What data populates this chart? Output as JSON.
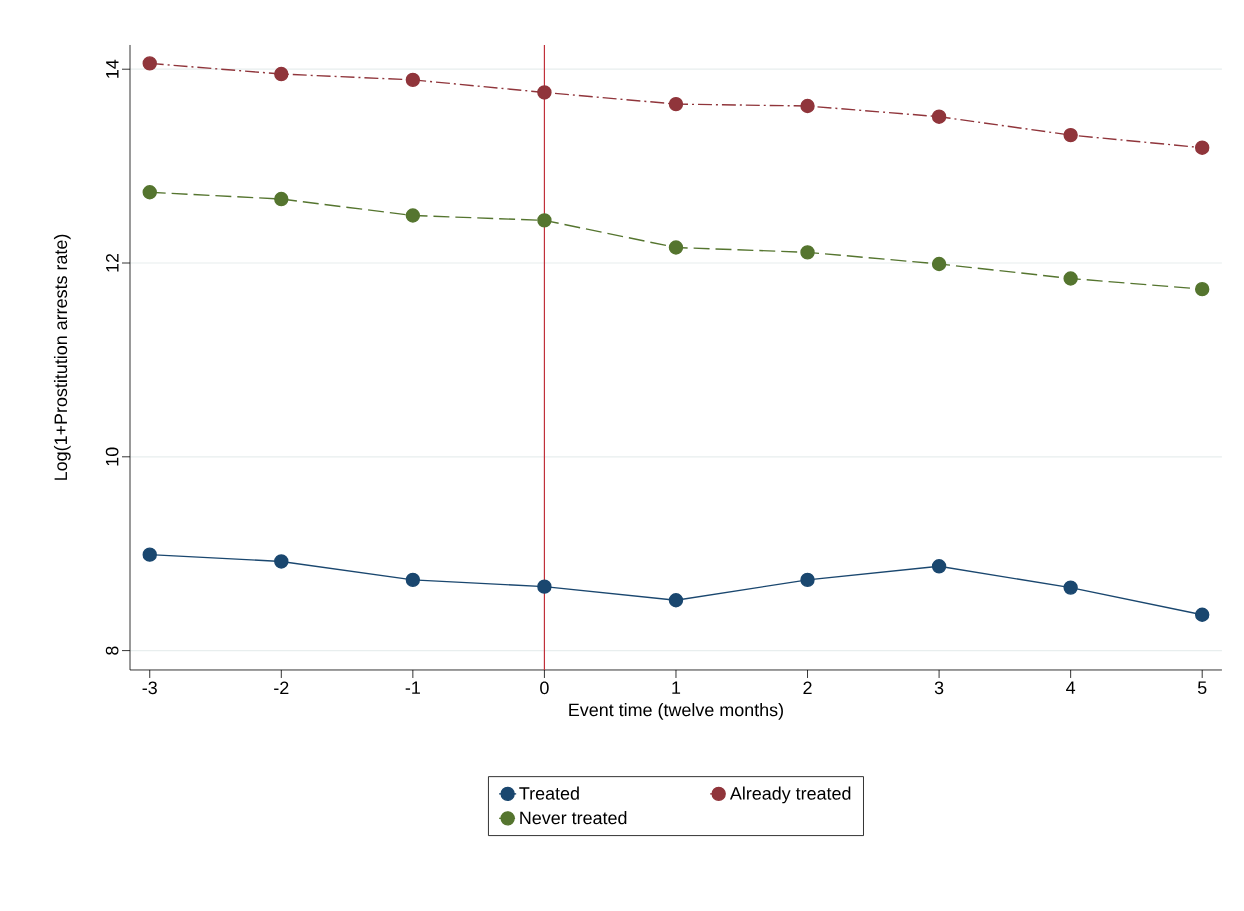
{
  "chart_data": {
    "type": "line",
    "xlabel": "Event time (twelve months)",
    "ylabel": "Log(1+Prostitution arrests rate)",
    "x": [
      -3,
      -2,
      -1,
      0,
      1,
      2,
      3,
      4,
      5
    ],
    "series": [
      {
        "name": "Treated",
        "color": "#1a476f",
        "line_style": "solid",
        "values": [
          8.99,
          8.92,
          8.73,
          8.66,
          8.52,
          8.73,
          8.87,
          8.65,
          8.37
        ]
      },
      {
        "name": "Already treated",
        "color": "#90353b",
        "line_style": "dashdot",
        "values": [
          14.06,
          13.95,
          13.89,
          13.76,
          13.64,
          13.62,
          13.51,
          13.32,
          13.19
        ]
      },
      {
        "name": "Never treated",
        "color": "#55752f",
        "line_style": "dashed",
        "values": [
          12.73,
          12.66,
          12.49,
          12.44,
          12.16,
          12.11,
          11.99,
          11.84,
          11.73
        ]
      }
    ],
    "xlim": [
      -3.15,
      5.15
    ],
    "ylim": [
      7.8,
      14.25
    ],
    "xticks": [
      -3,
      -2,
      -1,
      0,
      1,
      2,
      3,
      4,
      5
    ],
    "yticks": [
      8,
      10,
      12,
      14
    ],
    "ref_lines": [
      {
        "axis": "x",
        "value": 0,
        "color": "#c0303a"
      }
    ],
    "grid": "y",
    "legend": "bottom",
    "marker": "circle"
  }
}
